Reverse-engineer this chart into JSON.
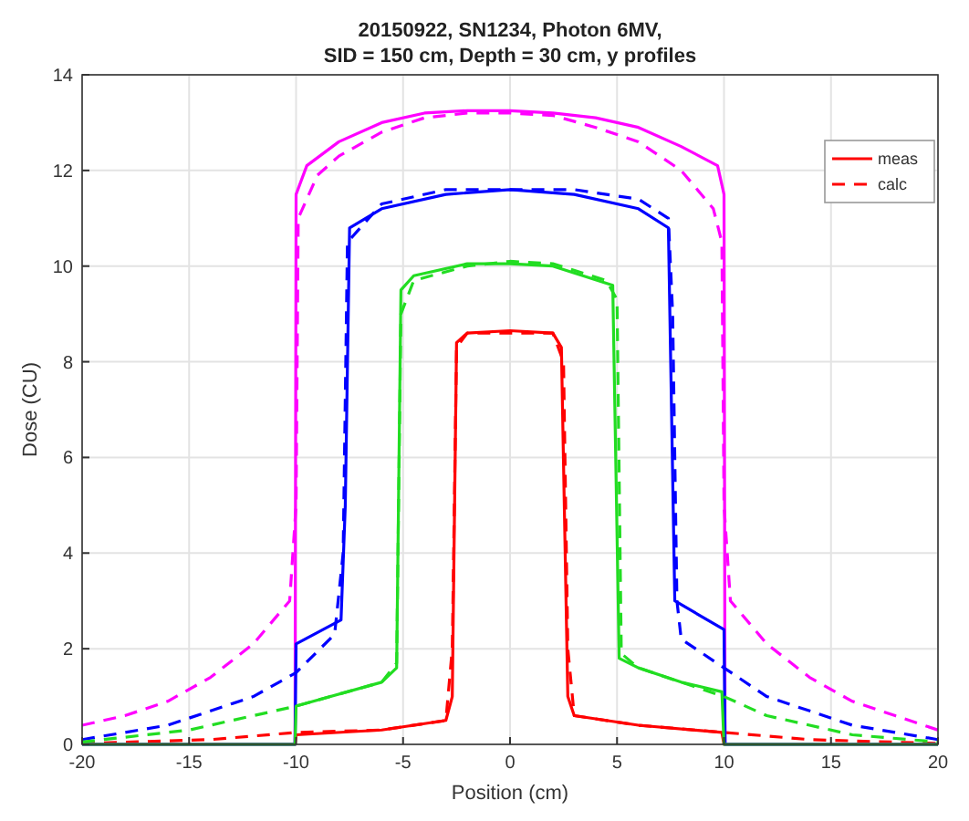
{
  "chart_data": {
    "type": "line",
    "title": "20150922, SN1234, Photon 6MV,",
    "subtitle": "SID = 150 cm, Depth = 30 cm, y profiles",
    "xlabel": "Position (cm)",
    "ylabel": "Dose (CU)",
    "xlim": [
      -20,
      20
    ],
    "xticks": [
      -20,
      -15,
      -10,
      -5,
      0,
      5,
      10,
      15,
      20
    ],
    "ylim": [
      0,
      14
    ],
    "yticks": [
      0,
      2,
      4,
      6,
      8,
      10,
      12,
      14
    ],
    "grid": true,
    "legend": "top right",
    "series": [
      {
        "name": "meas",
        "color": "#ff0000",
        "line_style": "solid",
        "x": [
          -20,
          -10.05,
          -10,
          -6,
          -3,
          -2.7,
          -2.5,
          -2,
          0,
          2,
          2.4,
          2.7,
          3,
          6,
          9.9,
          10,
          20
        ],
        "values": [
          0,
          0,
          0.2,
          0.3,
          0.5,
          1.0,
          8.4,
          8.6,
          8.65,
          8.6,
          8.3,
          1.0,
          0.6,
          0.4,
          0.25,
          0,
          0
        ]
      },
      {
        "name": "calc",
        "color": "#ff0000",
        "line_style": "dashed",
        "x": [
          -20,
          -14,
          -10,
          -6,
          -3,
          -2.7,
          -2.5,
          -2,
          0,
          2,
          2.5,
          2.7,
          3,
          6,
          10,
          14,
          20
        ],
        "values": [
          0.02,
          0.1,
          0.25,
          0.3,
          0.5,
          2,
          8.3,
          8.6,
          8.6,
          8.6,
          8.0,
          2,
          0.6,
          0.4,
          0.25,
          0.1,
          0.02
        ]
      },
      {
        "color": "#ff00ff",
        "line_style": "solid",
        "x": [
          -20,
          -10.05,
          -10,
          -9.5,
          -8,
          -6,
          -4,
          -2,
          0,
          2,
          4,
          6,
          8,
          9.7,
          10,
          10.05,
          20
        ],
        "values": [
          0,
          0,
          11.5,
          12.1,
          12.6,
          13.0,
          13.2,
          13.25,
          13.25,
          13.2,
          13.1,
          12.9,
          12.5,
          12.1,
          11.5,
          0,
          0
        ]
      },
      {
        "color": "#ff00ff",
        "line_style": "dashed",
        "x": [
          -20,
          -18,
          -16,
          -14,
          -12,
          -10.3,
          -10,
          -9.9,
          -9,
          -8,
          -6,
          -4,
          -2,
          0,
          2,
          4,
          6,
          8,
          9.5,
          9.9,
          10,
          10.3,
          12,
          14,
          16,
          18,
          20
        ],
        "values": [
          0.4,
          0.6,
          0.9,
          1.4,
          2.1,
          3.0,
          5,
          11.0,
          11.9,
          12.3,
          12.8,
          13.1,
          13.2,
          13.2,
          13.15,
          12.9,
          12.6,
          12.0,
          11.2,
          10.5,
          5,
          3.0,
          2.1,
          1.4,
          0.9,
          0.6,
          0.3
        ]
      },
      {
        "color": "#0000ff",
        "line_style": "solid",
        "x": [
          -20,
          -10.05,
          -10,
          -7.9,
          -7.7,
          -7.5,
          -6,
          -3,
          0,
          3,
          6,
          7.4,
          7.7,
          10,
          10.05,
          20
        ],
        "values": [
          0,
          0,
          2.1,
          2.6,
          5,
          10.8,
          11.2,
          11.5,
          11.6,
          11.5,
          11.2,
          10.8,
          3.0,
          2.4,
          0,
          0
        ]
      },
      {
        "color": "#0000ff",
        "line_style": "dashed",
        "x": [
          -20,
          -16,
          -12,
          -10,
          -8.2,
          -7.8,
          -7.6,
          -6,
          -3,
          0,
          3,
          6,
          7.4,
          7.6,
          7.8,
          8,
          10,
          12,
          16,
          20
        ],
        "values": [
          0.1,
          0.4,
          1.0,
          1.5,
          2.3,
          4,
          10.5,
          11.3,
          11.6,
          11.6,
          11.6,
          11.4,
          11.0,
          9,
          3,
          2.2,
          1.6,
          1.0,
          0.4,
          0.1
        ]
      },
      {
        "color": "#22dd22",
        "line_style": "solid",
        "x": [
          -20,
          -10.05,
          -10,
          -6,
          -5.3,
          -5.1,
          -4.5,
          -2,
          0,
          2,
          4.8,
          5.1,
          6,
          8,
          9.9,
          10,
          20
        ],
        "values": [
          0,
          0,
          0.8,
          1.3,
          1.6,
          9.5,
          9.8,
          10.05,
          10.05,
          10.0,
          9.6,
          1.8,
          1.6,
          1.3,
          1.1,
          0,
          0
        ]
      },
      {
        "color": "#22dd22",
        "line_style": "dashed",
        "x": [
          -20,
          -15,
          -10,
          -6,
          -5.3,
          -5.1,
          -4.5,
          -2,
          0,
          2,
          4.5,
          5,
          5.2,
          6,
          8,
          10,
          12,
          16,
          20
        ],
        "values": [
          0.05,
          0.3,
          0.8,
          1.3,
          1.7,
          9.0,
          9.7,
          10.0,
          10.1,
          10.05,
          9.7,
          9.3,
          1.9,
          1.6,
          1.3,
          1.0,
          0.6,
          0.2,
          0.05
        ]
      }
    ]
  }
}
